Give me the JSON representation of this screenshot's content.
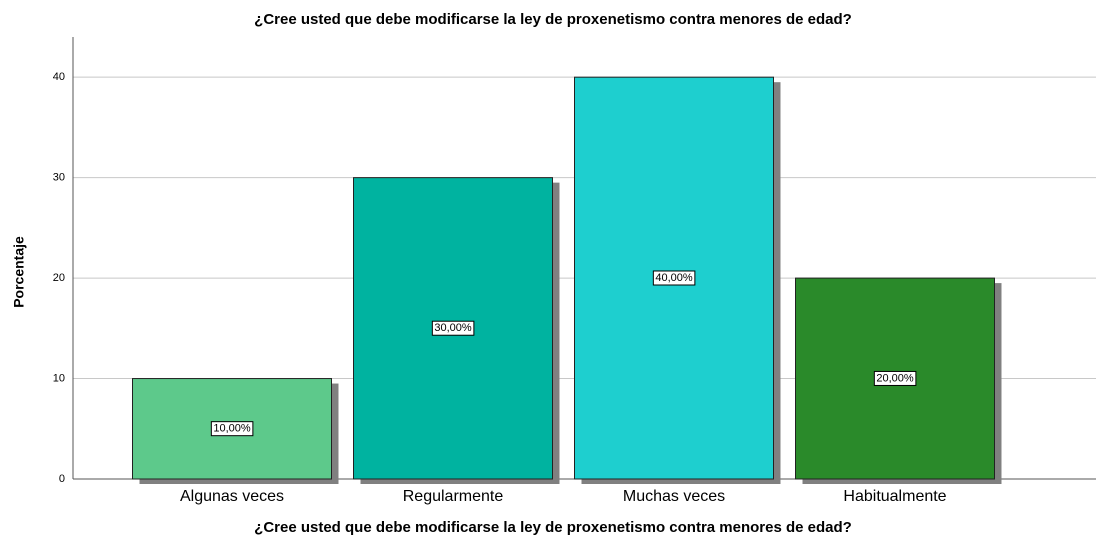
{
  "chart_data": {
    "type": "bar",
    "title": "¿Cree usted que debe modificarse la ley de proxenetismo contra menores de edad?",
    "x_label": "¿Cree usted que debe modificarse la ley de proxenetismo contra menores de edad?",
    "y_label": "Porcentaje",
    "categories": [
      "Algunas veces",
      "Regularmente",
      "Muchas veces",
      "Habitualmente"
    ],
    "values": [
      10,
      30,
      40,
      20
    ],
    "value_labels": [
      "10,00%",
      "30,00%",
      "40,00%",
      "20,00%"
    ],
    "colors": [
      "#5dc98b",
      "#00b3a0",
      "#1ecfcf",
      "#2a8a2a"
    ],
    "ylim": [
      0,
      44
    ],
    "yticks": [
      0,
      10,
      20,
      30,
      40
    ],
    "grid": true
  }
}
